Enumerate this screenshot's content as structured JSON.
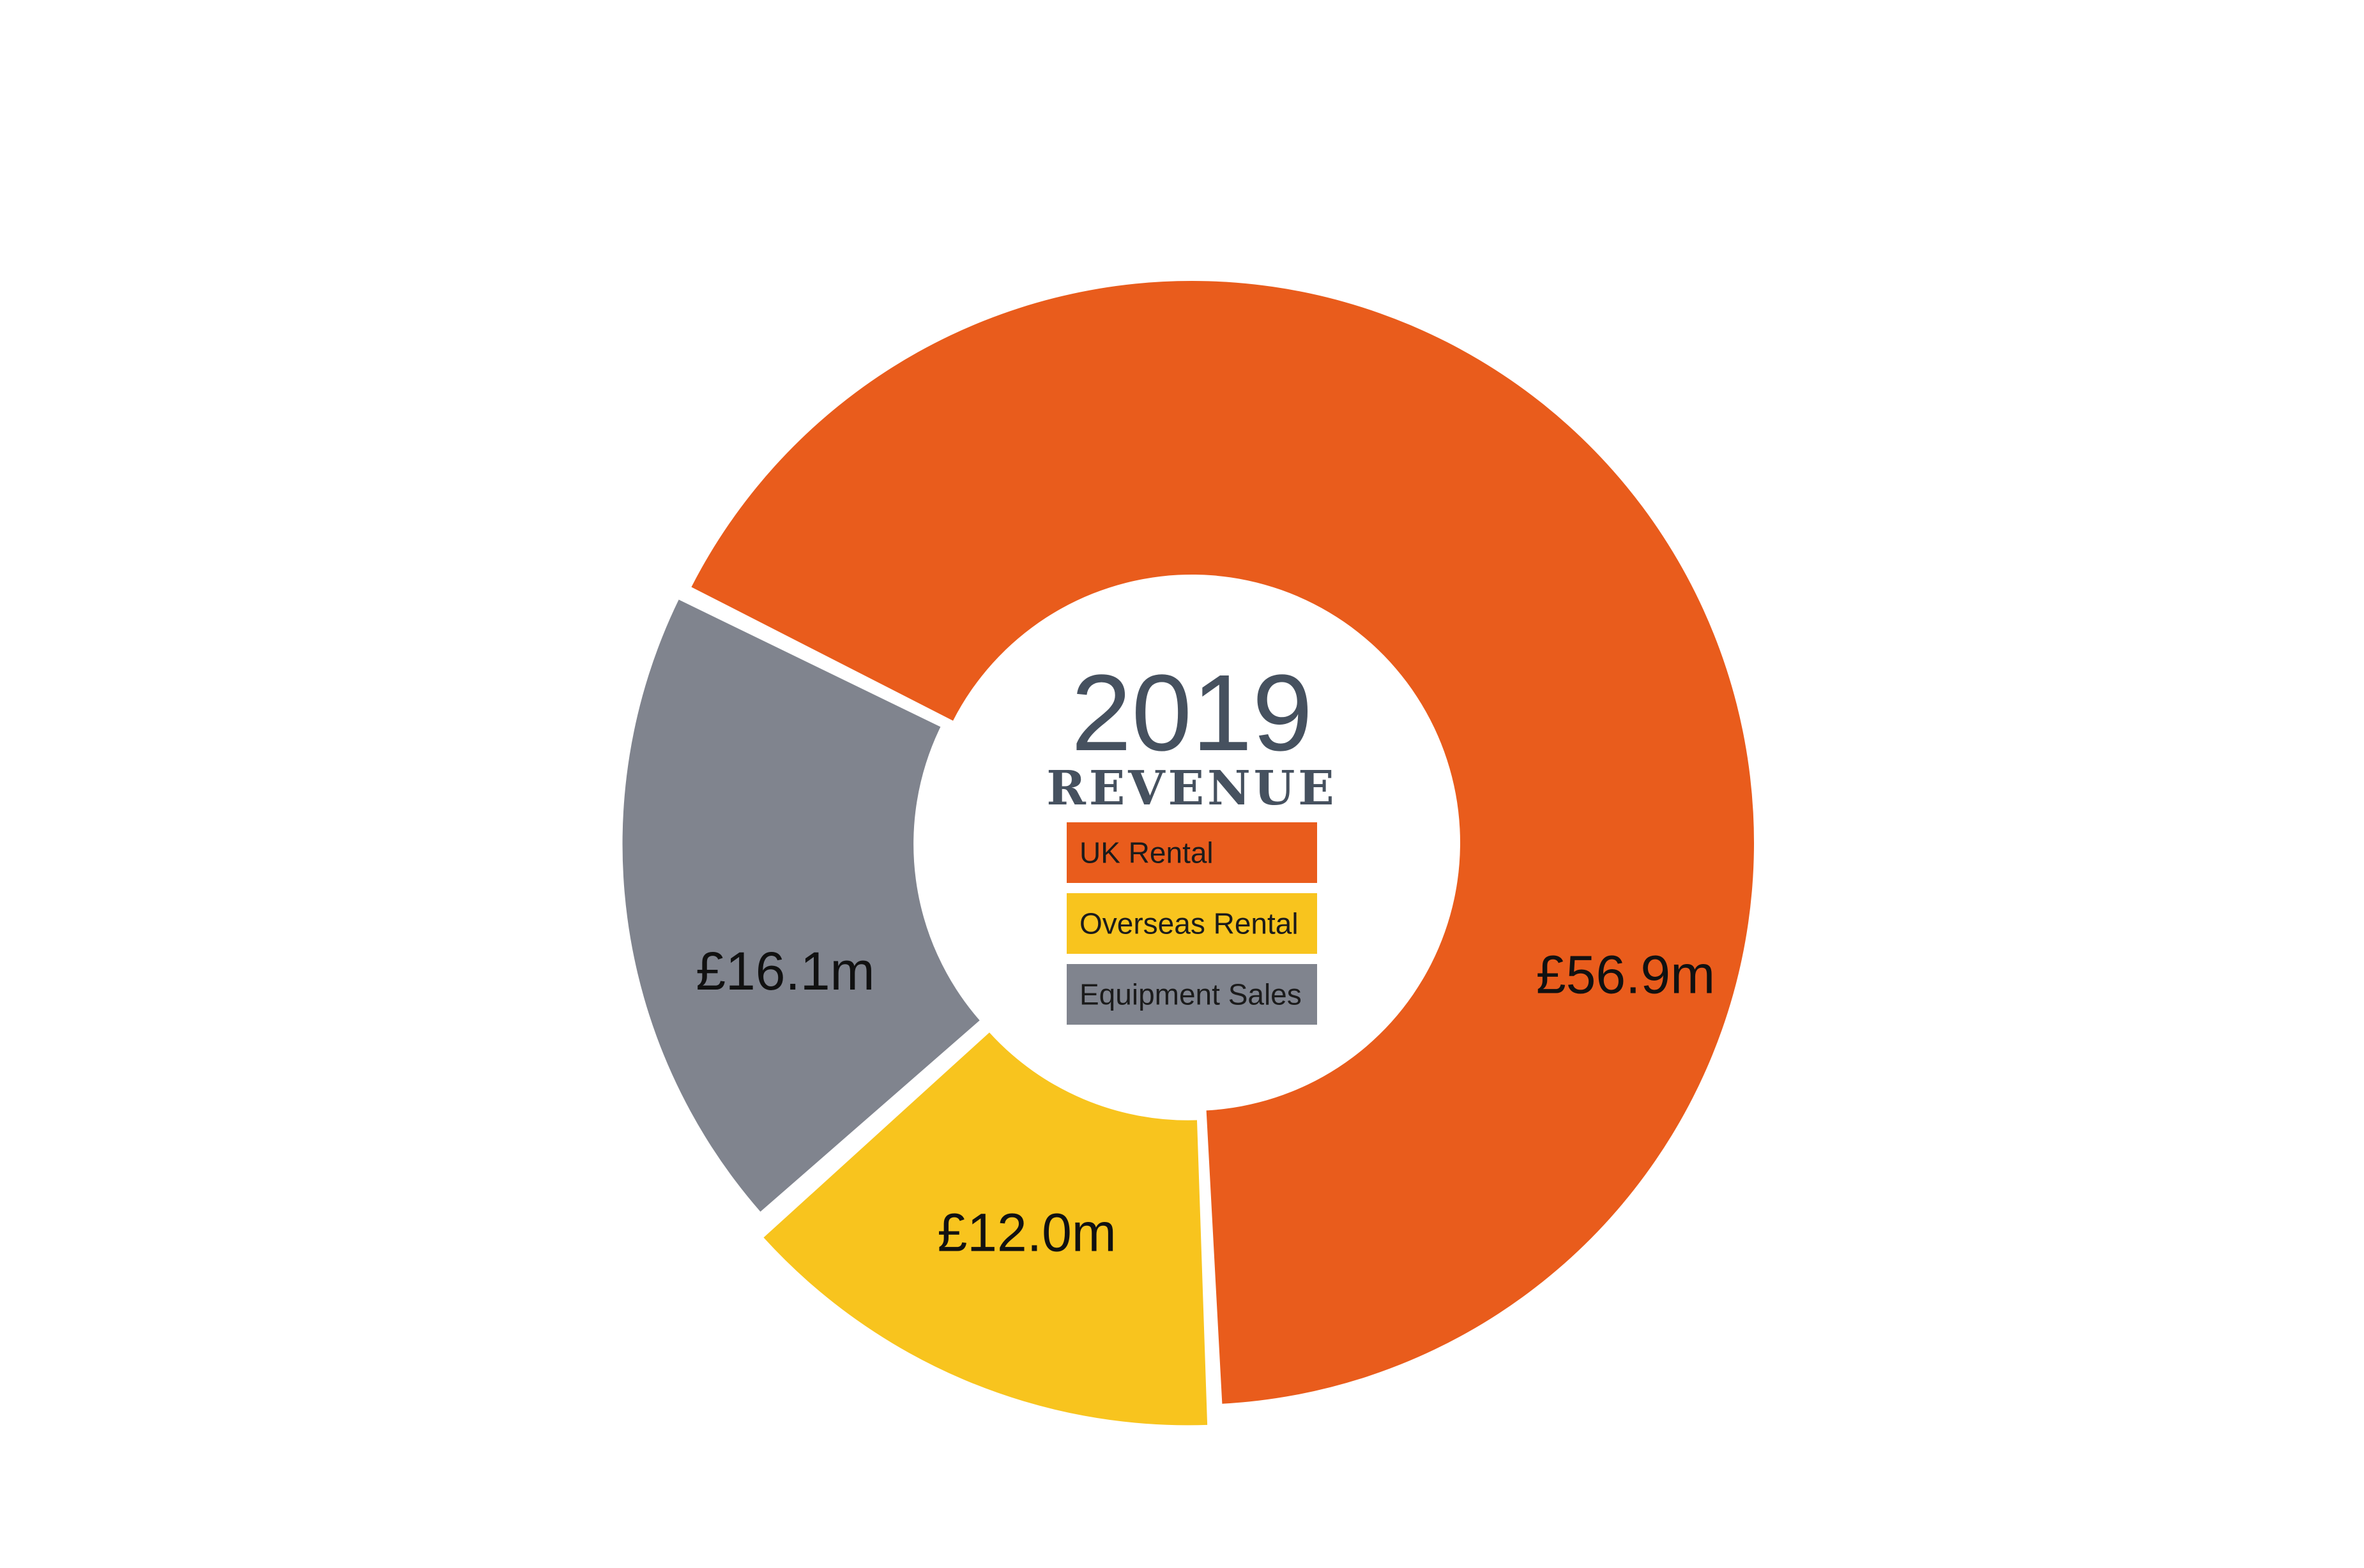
{
  "chart_data": {
    "type": "pie",
    "variant": "donut",
    "title": "2019",
    "subtitle": "REVENUE",
    "legend_position": "center",
    "categories": [
      "UK Rental",
      "Overseas Rental",
      "Equipment Sales"
    ],
    "values": [
      56.9,
      12.0,
      16.1
    ],
    "labels": [
      "£56.9m",
      "£12.0m",
      "£16.1m"
    ],
    "colors": [
      "#e95c1c",
      "#f8c41e",
      "#80848e"
    ]
  }
}
